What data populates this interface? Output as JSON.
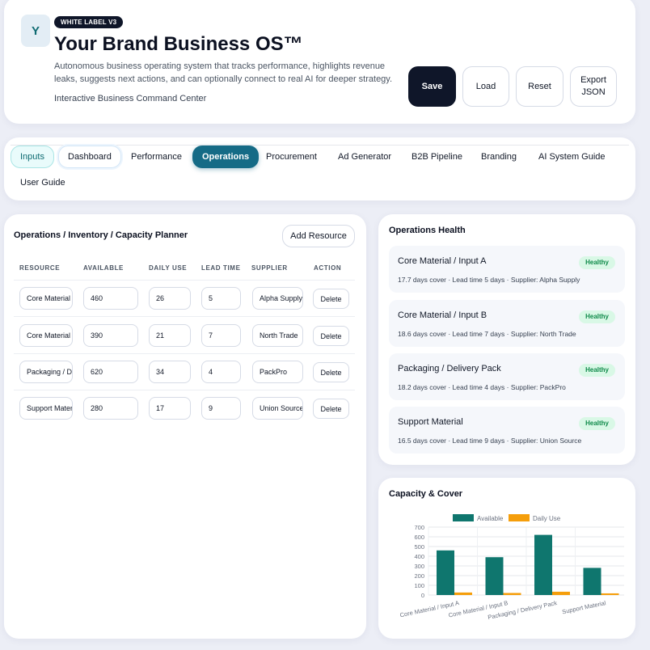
{
  "header": {
    "logo_letter": "Y",
    "badge": "WHITE LABEL V3",
    "title": "Your Brand Business OS™",
    "description": "Autonomous business operating system that tracks performance, highlights revenue leaks, suggests next actions, and can optionally connect to real AI for deeper strategy.",
    "subtitle": "Interactive Business Command Center",
    "buttons": {
      "save": "Save",
      "load": "Load",
      "reset": "Reset",
      "export": "Export JSON"
    }
  },
  "tabs": [
    "Inputs",
    "Dashboard",
    "Performance",
    "Operations",
    "Procurement",
    "Ad Generator",
    "B2B Pipeline",
    "Branding",
    "AI System Guide",
    "User Guide"
  ],
  "planner": {
    "title": "Operations / Inventory / Capacity Planner",
    "add_button": "Add Resource",
    "columns": [
      "RESOURCE",
      "AVAILABLE",
      "DAILY USE",
      "LEAD TIME",
      "SUPPLIER",
      "ACTION"
    ],
    "rows": [
      {
        "resource": "Core Material / Input A",
        "available": "460",
        "daily_use": "26",
        "lead_time": "5",
        "supplier": "Alpha Supply",
        "action": "Delete"
      },
      {
        "resource": "Core Material / Input B",
        "available": "390",
        "daily_use": "21",
        "lead_time": "7",
        "supplier": "North Trade",
        "action": "Delete"
      },
      {
        "resource": "Packaging / Delivery Pack",
        "available": "620",
        "daily_use": "34",
        "lead_time": "4",
        "supplier": "PackPro",
        "action": "Delete"
      },
      {
        "resource": "Support Material",
        "available": "280",
        "daily_use": "17",
        "lead_time": "9",
        "supplier": "Union Source",
        "action": "Delete"
      }
    ]
  },
  "health": {
    "title": "Operations Health",
    "items": [
      {
        "name": "Core Material / Input A",
        "status": "Healthy",
        "meta": "17.7 days cover · Lead time 5 days · Supplier: Alpha Supply"
      },
      {
        "name": "Core Material / Input B",
        "status": "Healthy",
        "meta": "18.6 days cover · Lead time 7 days · Supplier: North Trade"
      },
      {
        "name": "Packaging / Delivery Pack",
        "status": "Healthy",
        "meta": "18.2 days cover · Lead time 4 days · Supplier: PackPro"
      },
      {
        "name": "Support Material",
        "status": "Healthy",
        "meta": "16.5 days cover · Lead time 9 days · Supplier: Union Source"
      }
    ]
  },
  "capacity": {
    "title": "Capacity & Cover",
    "colors": {
      "available": "#0f766e",
      "daily_use": "#f59e0b"
    }
  },
  "chart_data": {
    "type": "bar",
    "categories": [
      "Core Material / Input A",
      "Core Material / Input B",
      "Packaging / Delivery Pack",
      "Support Material"
    ],
    "series": [
      {
        "name": "Available",
        "values": [
          460,
          390,
          620,
          280
        ]
      },
      {
        "name": "Daily Use",
        "values": [
          26,
          21,
          34,
          17
        ]
      }
    ],
    "ylim": [
      0,
      700
    ],
    "yticks": [
      "0",
      "100",
      "200",
      "300",
      "400",
      "500",
      "600",
      "700"
    ],
    "legend": "top",
    "grid": true
  }
}
